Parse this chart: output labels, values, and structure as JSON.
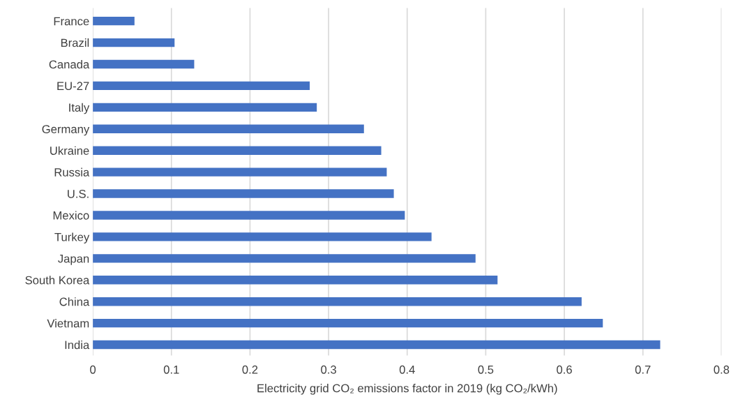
{
  "chart_data": {
    "type": "bar",
    "orientation": "horizontal",
    "xlabel": "Electricity grid CO₂ emissions factor in 2019 (kg CO₂/kWh)",
    "categories": [
      "France",
      "Brazil",
      "Canada",
      "EU-27",
      "Italy",
      "Germany",
      "Ukraine",
      "Russia",
      "U.S.",
      "Mexico",
      "Turkey",
      "Japan",
      "South Korea",
      "China",
      "Vietnam",
      "India"
    ],
    "values": [
      0.053,
      0.104,
      0.129,
      0.276,
      0.285,
      0.345,
      0.367,
      0.374,
      0.383,
      0.397,
      0.431,
      0.487,
      0.515,
      0.622,
      0.649,
      0.722
    ],
    "color": "#4472c4",
    "xlim": [
      0,
      0.8
    ],
    "xticks": [
      0,
      0.1,
      0.2,
      0.3,
      0.4,
      0.5,
      0.6,
      0.7,
      0.8
    ],
    "grid": "x",
    "legend": false
  }
}
